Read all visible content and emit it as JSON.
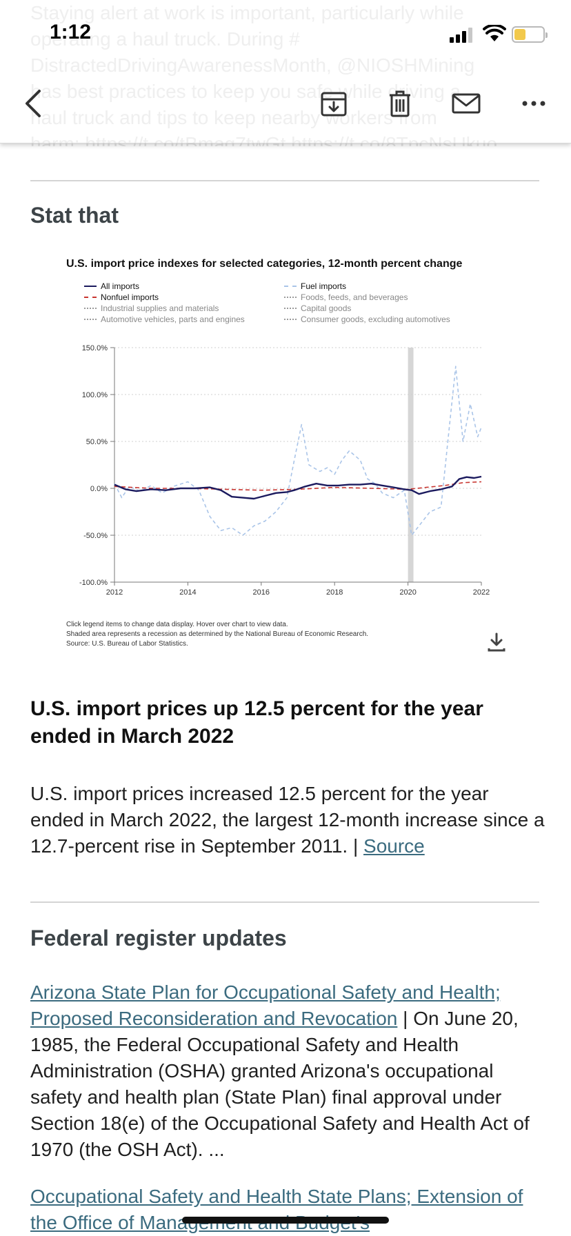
{
  "status_bar": {
    "time": "1:12"
  },
  "email_preview": {
    "lines": [
      "Staying alert at work is important, particularly while",
      "operating a haul truck. During #",
      "DistractedDrivingAwarenessMonth, @NIOSHMining",
      "has best practices to keep you safe while driving a",
      "haul truck and tips to keep nearby workers from"
    ],
    "last_line_prefix": "harm: ",
    "link1": "https://t.co/tBmag7twGt",
    "link2": "https://t.co/8TpcNsUkuo"
  },
  "toolbar": {
    "back_icon": "chevron-left-icon",
    "archive_icon": "archive-icon",
    "trash_icon": "trash-icon",
    "mail_icon": "mail-icon",
    "more_icon": "more-icon"
  },
  "stat_section": {
    "heading": "Stat that"
  },
  "chart_data": {
    "type": "line",
    "title": "U.S. import price indexes for selected categories, 12-month percent change",
    "legend": [
      {
        "name": "All imports",
        "style": "solid",
        "color": "#1b1a5e"
      },
      {
        "name": "Nonfuel imports",
        "style": "dashed",
        "color": "#c8342f"
      },
      {
        "name": "Industrial supplies and materials",
        "style": "dotted",
        "color": "#9a9a9a"
      },
      {
        "name": "Automotive vehicles, parts and engines",
        "style": "dotted",
        "color": "#9a9a9a"
      },
      {
        "name": "Fuel imports",
        "style": "dashed",
        "color": "#a9c4e8"
      },
      {
        "name": "Foods, feeds, and beverages",
        "style": "dotted",
        "color": "#9a9a9a"
      },
      {
        "name": "Capital goods",
        "style": "dotted",
        "color": "#9a9a9a"
      },
      {
        "name": "Consumer goods, excluding automotives",
        "style": "dotted",
        "color": "#9a9a9a"
      }
    ],
    "y_ticks": [
      "150.0%",
      "100.0%",
      "50.0%",
      "0.0%",
      "-50.0%",
      "-100.0%"
    ],
    "ylim": [
      -100,
      150
    ],
    "x_ticks": [
      "2012",
      "2014",
      "2016",
      "2018",
      "2020",
      "2022"
    ],
    "xlim": [
      2012,
      2022
    ],
    "recession": [
      2020.0,
      2020.15
    ],
    "series": [
      {
        "name": "All imports",
        "x": [
          2012.0,
          2012.3,
          2012.6,
          2013.0,
          2013.4,
          2013.8,
          2014.2,
          2014.6,
          2014.9,
          2015.2,
          2015.5,
          2015.8,
          2016.1,
          2016.4,
          2016.7,
          2016.9,
          2017.2,
          2017.5,
          2017.8,
          2018.1,
          2018.4,
          2018.7,
          2019.0,
          2019.3,
          2019.6,
          2019.9,
          2020.1,
          2020.3,
          2020.6,
          2020.9,
          2021.2,
          2021.4,
          2021.6,
          2021.8,
          2022.0
        ],
        "y": [
          4,
          -1,
          -3,
          -1,
          -2,
          0,
          0,
          1,
          -2,
          -9,
          -10,
          -11,
          -8,
          -5,
          -4,
          -2,
          2,
          5,
          3,
          3,
          4,
          4,
          5,
          3,
          1,
          -1,
          -2,
          -6,
          -3,
          -1,
          2,
          10,
          12,
          11,
          12.5
        ]
      },
      {
        "name": "Nonfuel imports",
        "x": [
          2012.0,
          2013.0,
          2014.0,
          2015.0,
          2016.0,
          2017.0,
          2018.0,
          2019.0,
          2020.0,
          2020.5,
          2021.0,
          2021.5,
          2022.0
        ],
        "y": [
          2,
          0,
          0,
          -1,
          -2,
          -1,
          1,
          0,
          -1,
          1,
          3,
          6,
          7
        ]
      },
      {
        "name": "Fuel imports",
        "x": [
          2012.0,
          2012.2,
          2012.4,
          2012.7,
          2013.0,
          2013.3,
          2013.6,
          2014.0,
          2014.3,
          2014.6,
          2014.9,
          2015.2,
          2015.5,
          2015.8,
          2016.1,
          2016.4,
          2016.7,
          2016.9,
          2017.1,
          2017.3,
          2017.6,
          2017.8,
          2018.0,
          2018.2,
          2018.4,
          2018.7,
          2018.9,
          2019.1,
          2019.3,
          2019.6,
          2019.9,
          2020.1,
          2020.3,
          2020.6,
          2020.9,
          2021.1,
          2021.3,
          2021.5,
          2021.7,
          2021.9,
          2022.0
        ],
        "y": [
          5,
          -10,
          2,
          -3,
          3,
          -5,
          2,
          7,
          -2,
          -30,
          -45,
          -42,
          -50,
          -40,
          -35,
          -25,
          -10,
          30,
          68,
          25,
          18,
          22,
          15,
          30,
          40,
          30,
          10,
          5,
          -5,
          -10,
          -2,
          -50,
          -40,
          -25,
          -20,
          55,
          130,
          50,
          90,
          55,
          65
        ]
      }
    ],
    "notes": [
      "Click legend items to change data display. Hover over chart to view data.",
      "Shaded area represents a recession as determined by the National Bureau of Economic Research.",
      "Source: U.S. Bureau of Labor Statistics."
    ]
  },
  "article": {
    "headline": "U.S. import prices up 12.5 percent for the year ended in March 2022",
    "body": "U.S. import prices increased 12.5 percent for the year ended in March 2022, the largest 12-month increase since a 12.7-percent rise in September 2011. | ",
    "source_link": "Source"
  },
  "federal_section": {
    "heading": "Federal register updates",
    "item1_link": "Arizona State Plan for Occupational Safety and Health; Proposed Reconsideration and Revocation",
    "item1_sep": " | ",
    "item1_text": "On June 20, 1985, the Federal Occupational Safety and Health Administration (OSHA) granted Arizona's occupational safety and health plan (State Plan) final approval under Section 18(e) of the Occupational Safety and Health Act of 1970 (the OSH Act). ...",
    "item2_link": "Occupational Safety and Health State Plans; Extension of the Office of Management and Budget's"
  }
}
